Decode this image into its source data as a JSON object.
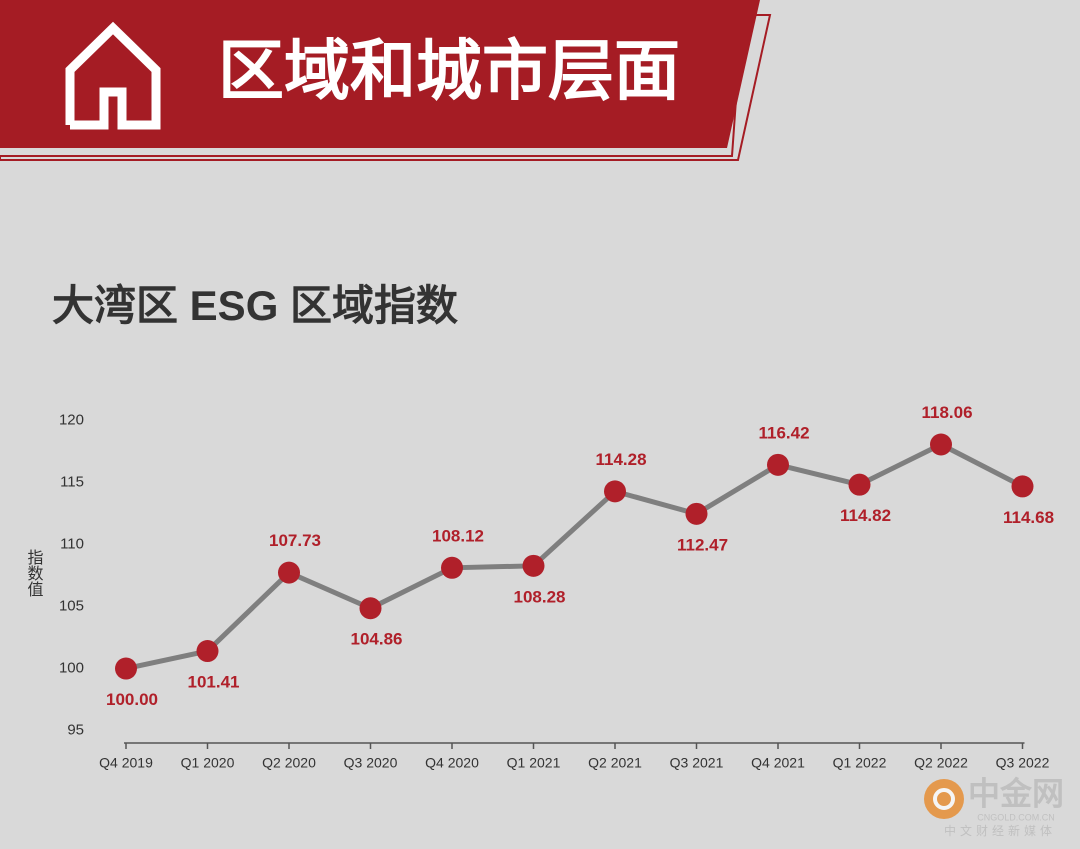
{
  "header": {
    "title": "区域和城市层面"
  },
  "chart_data": {
    "type": "line",
    "title": "大湾区 ESG 区域指数",
    "y_label": "指数值",
    "categories": [
      "Q4 2019",
      "Q1 2020",
      "Q2 2020",
      "Q3 2020",
      "Q4 2020",
      "Q1 2021",
      "Q2 2021",
      "Q3 2021",
      "Q4 2021",
      "Q1 2022",
      "Q2 2022",
      "Q3 2022"
    ],
    "values": [
      100,
      101.41,
      107.73,
      104.86,
      108.12,
      108.28,
      114.28,
      112.47,
      116.42,
      114.82,
      118.06,
      114.68
    ],
    "value_labels": [
      "100.00",
      "101.41",
      "107.73",
      "104.86",
      "108.12",
      "108.28",
      "114.28",
      "112.47",
      "116.42",
      "114.82",
      "118.06",
      "114.68"
    ],
    "line_color": "#7f7f7f",
    "marker_color": "#b0202a",
    "label_color": "#b0202a",
    "ylim": [
      94,
      121
    ],
    "yticks": [
      95,
      100,
      105,
      110,
      115,
      120
    ],
    "grid": false
  },
  "watermark": {
    "brand": "中金网",
    "domain": "CNGOLD.COM.CN",
    "slogan": "中文财经新媒体"
  }
}
